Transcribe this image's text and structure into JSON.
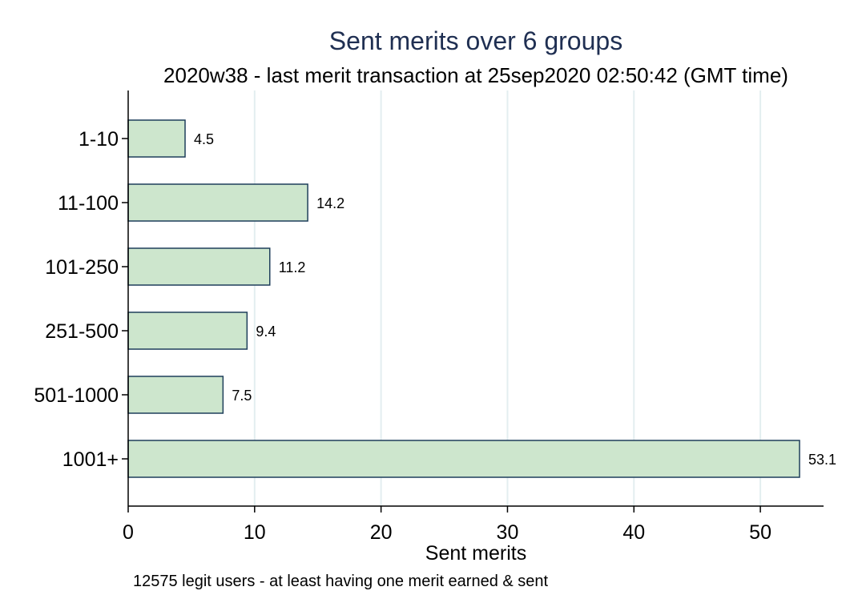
{
  "chart_data": {
    "type": "bar",
    "orientation": "horizontal",
    "title": "Sent merits over 6 groups",
    "subtitle": "2020w38 - last merit transaction at 25sep2020 02:50:42 (GMT time)",
    "xlabel": "Sent merits",
    "note": "12575 legit users - at least having one merit earned & sent",
    "categories": [
      "1-10",
      "11-100",
      "101-250",
      "251-500",
      "501-1000",
      "1001+"
    ],
    "values": [
      4.5,
      14.2,
      11.2,
      9.4,
      7.5,
      53.1
    ],
    "value_labels": [
      "4.5",
      "14.2",
      "11.2",
      "9.4",
      "7.5",
      "53.1"
    ],
    "xlim": [
      0,
      55
    ],
    "xticks": [
      0,
      10,
      20,
      30,
      40,
      50
    ],
    "grid": true,
    "colors": {
      "bar_fill": "#cde6cd",
      "bar_stroke": "#1f3f5b",
      "grid": "#e3eef0",
      "title": "#1f2f52"
    }
  }
}
